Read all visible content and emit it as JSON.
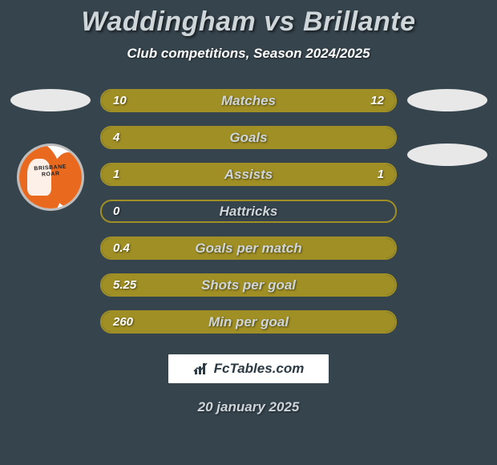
{
  "colors": {
    "page_bg": "#36444d",
    "title_fg": "#cfd6da",
    "subtitle_fg": "#ffffff",
    "bar_border": "#a08f24",
    "bar_fill": "#a08f24",
    "bar_val_fg": "#ffffff",
    "bar_label_fg": "#cfd6da",
    "oval_bg": "#e8e8e8",
    "logo_bg": "#ffffff",
    "logo_border": "#36444d",
    "logo_fg": "#2c3a43",
    "date_fg": "#cfd6da",
    "badge_orange": "#e96a1f"
  },
  "title": "Waddingham vs Brillante",
  "subtitle": "Club competitions, Season 2024/2025",
  "date": "20 january 2025",
  "logo_text": "FcTables.com",
  "rows": [
    {
      "label": "Matches",
      "left": "10",
      "right": "12",
      "left_pct": 45,
      "right_pct": 55
    },
    {
      "label": "Goals",
      "left": "4",
      "right": "",
      "left_pct": 100,
      "right_pct": 0
    },
    {
      "label": "Assists",
      "left": "1",
      "right": "1",
      "left_pct": 50,
      "right_pct": 50
    },
    {
      "label": "Hattricks",
      "left": "0",
      "right": "",
      "left_pct": 0,
      "right_pct": 0
    },
    {
      "label": "Goals per match",
      "left": "0.4",
      "right": "",
      "left_pct": 100,
      "right_pct": 0
    },
    {
      "label": "Shots per goal",
      "left": "5.25",
      "right": "",
      "left_pct": 100,
      "right_pct": 0
    },
    {
      "label": "Min per goal",
      "left": "260",
      "right": "",
      "left_pct": 100,
      "right_pct": 0
    }
  ]
}
